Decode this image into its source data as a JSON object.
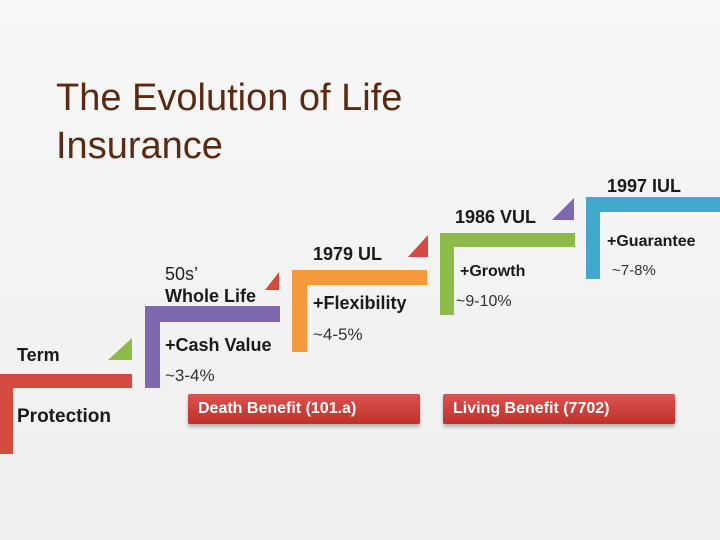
{
  "title": {
    "line1": "The Evolution of Life",
    "line2": "Insurance"
  },
  "steps": {
    "term": {
      "label": "Term",
      "feature": "Protection",
      "color": "#d34a3f"
    },
    "whole_life": {
      "label_line1": "50s’",
      "label_line2": "Whole Life",
      "feature": "+Cash Value",
      "rate": "~3-4%",
      "color": "#8068b0"
    },
    "ul": {
      "label": "1979 UL",
      "feature": "+Flexibility",
      "rate": "~4-5%",
      "color": "#f59a3c"
    },
    "vul": {
      "label": "1986 VUL",
      "feature": "+Growth",
      "rate": "~9-10%",
      "color": "#8dbb4a"
    },
    "iul": {
      "label": "1997 IUL",
      "feature": "+Guarantee",
      "rate": "~7-8%",
      "color": "#41a9cb"
    }
  },
  "benefits": {
    "death": "Death Benefit (101.a)",
    "living": "Living Benefit (7702)"
  }
}
